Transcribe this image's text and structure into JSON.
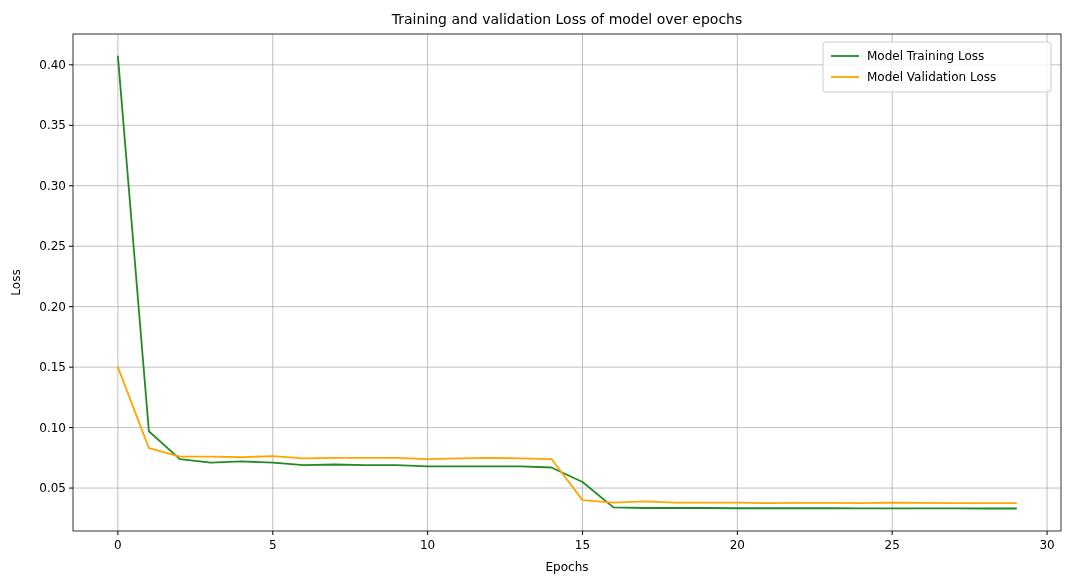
{
  "chart_data": {
    "type": "line",
    "title": "Training and validation Loss of model over epochs",
    "xlabel": "Epochs",
    "ylabel": "Loss",
    "x": [
      0,
      1,
      2,
      3,
      4,
      5,
      6,
      7,
      8,
      9,
      10,
      11,
      12,
      13,
      14,
      15,
      16,
      17,
      18,
      19,
      20,
      21,
      22,
      23,
      24,
      25,
      26,
      27,
      28,
      29
    ],
    "series": [
      {
        "name": "Model Training Loss",
        "color": "#228b22",
        "values": [
          0.407,
          0.097,
          0.074,
          0.071,
          0.072,
          0.071,
          0.069,
          0.0695,
          0.069,
          0.069,
          0.068,
          0.068,
          0.068,
          0.068,
          0.067,
          0.055,
          0.034,
          0.0335,
          0.0335,
          0.0335,
          0.0333,
          0.0333,
          0.0333,
          0.0333,
          0.0332,
          0.0332,
          0.0332,
          0.0332,
          0.0331,
          0.0331
        ]
      },
      {
        "name": "Model Validation Loss",
        "color": "#ffa500",
        "values": [
          0.15,
          0.083,
          0.076,
          0.076,
          0.0755,
          0.0765,
          0.0745,
          0.075,
          0.075,
          0.075,
          0.074,
          0.0745,
          0.075,
          0.0745,
          0.074,
          0.04,
          0.038,
          0.039,
          0.038,
          0.038,
          0.038,
          0.0375,
          0.0378,
          0.0377,
          0.0375,
          0.038,
          0.0377,
          0.0375,
          0.0375,
          0.0375
        ]
      }
    ],
    "xlim": [
      -1.45,
      30.45
    ],
    "xticks": [
      0,
      5,
      10,
      15,
      20,
      25,
      30
    ],
    "ylim": [
      0.0145,
      0.4255
    ],
    "yticks": [
      {
        "value": 0.05,
        "label": "0.05"
      },
      {
        "value": 0.1,
        "label": "0.10"
      },
      {
        "value": 0.15,
        "label": "0.15"
      },
      {
        "value": 0.2,
        "label": "0.20"
      },
      {
        "value": 0.25,
        "label": "0.25"
      },
      {
        "value": 0.3,
        "label": "0.30"
      },
      {
        "value": 0.35,
        "label": "0.35"
      },
      {
        "value": 0.4,
        "label": "0.40"
      }
    ],
    "grid": true,
    "legend": "top right",
    "marker": "none",
    "line_style": "solid"
  }
}
